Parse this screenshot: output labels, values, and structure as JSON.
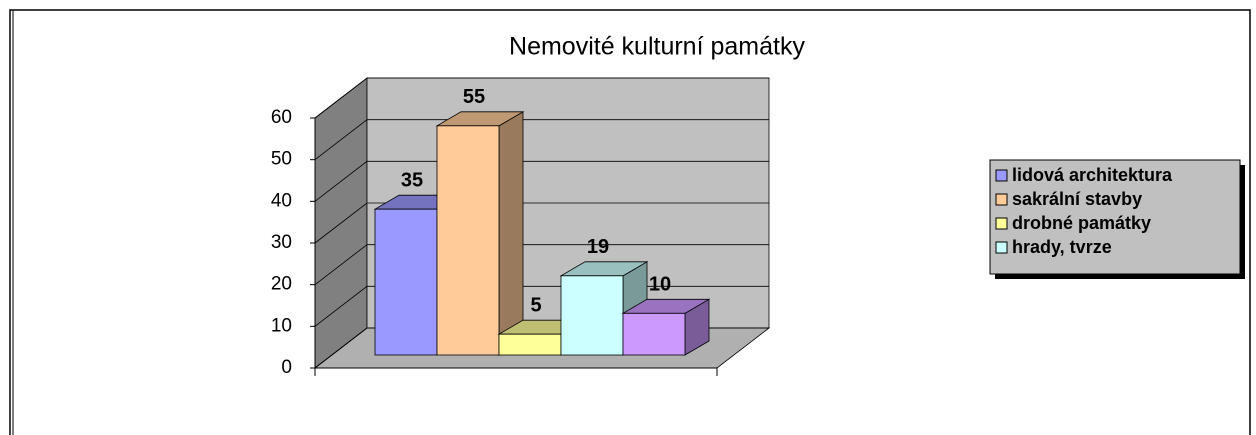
{
  "chart_data": {
    "type": "bar3d",
    "title": "Nemovité kulturní památky",
    "categories": [
      null
    ],
    "series": [
      {
        "name": "lidová architektura",
        "color": "#9999ff",
        "values": [
          35
        ]
      },
      {
        "name": "sakrální stavby",
        "color": "#ffcc99",
        "values": [
          55
        ]
      },
      {
        "name": "drobné památky",
        "color": "#ffff99",
        "values": [
          5
        ]
      },
      {
        "name": "hrady, tvrze",
        "color": "#ccffff",
        "values": [
          19
        ]
      },
      {
        "color": "#cc99ff",
        "values": [
          10
        ]
      }
    ],
    "ylim": [
      0,
      60
    ],
    "yticks": [
      0,
      10,
      20,
      30,
      40,
      50,
      60
    ],
    "grid": true,
    "legend": "right"
  }
}
